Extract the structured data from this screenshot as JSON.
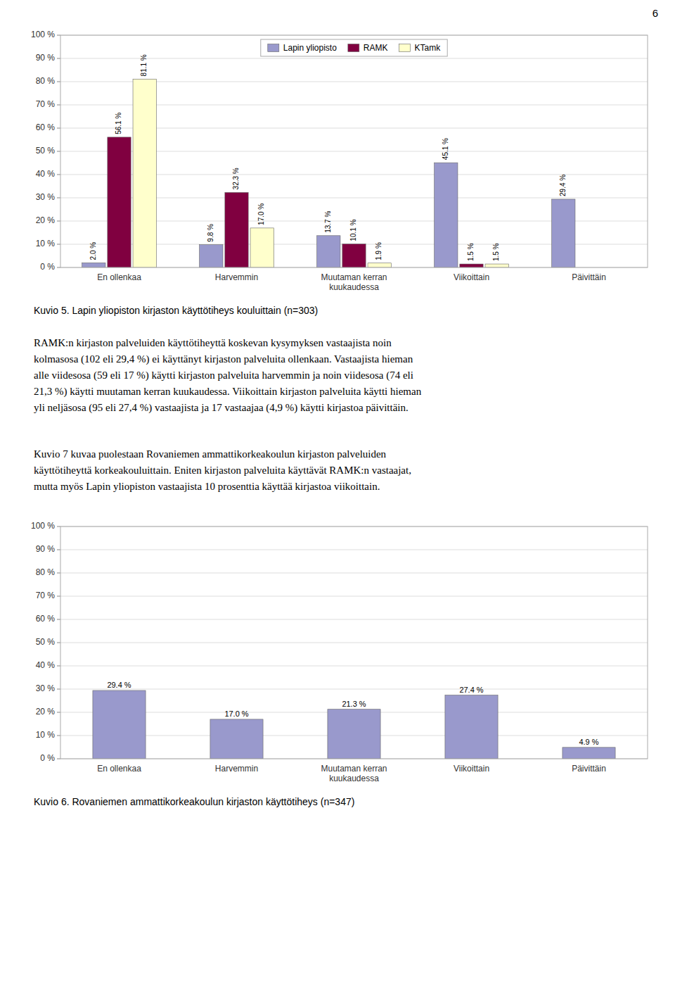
{
  "page_number": "6",
  "body_text": [
    "RAMK:n kirjaston palveluiden käyttötiheyttä koskevan kysymyksen vastaajista noin\nkolmasosa (102 eli 29,4 %) ei käyttänyt kirjaston palveluita ollenkaan. Vastaajista hieman\nalle viidesosa (59 eli 17 %) käytti kirjaston palveluita harvemmin ja noin viidesosa (74 eli\n21,3 %) käytti muutaman kerran kuukaudessa. Viikoittain kirjaston palveluita käytti hieman\nyli neljäsosa (95 eli 27,4 %) vastaajista ja 17 vastaajaa (4,9 %) käytti kirjastoa päivittäin.",
    "Kuvio 7 kuvaa puolestaan Rovaniemen ammattikorkeakoulun kirjaston palveluiden\nkäyttötiheyttä korkeakouluittain. Eniten kirjaston palveluita käyttävät RAMK:n vastaajat,\nmutta myös Lapin yliopiston vastaajista 10 prosenttia käyttää kirjastoa viikoittain."
  ],
  "chart_data": [
    {
      "type": "bar",
      "title": "Kuvio 5. Lapin yliopiston kirjaston käyttötiheys kouluittain (n=303)",
      "categories": [
        "En ollenkaa",
        "Harvemmin",
        "Muutaman kerran\nkuukaudessa",
        "Viikoittain",
        "Päivittäin"
      ],
      "series": [
        {
          "name": "Lapin yliopisto",
          "color": "#9999CC",
          "values": [
            2.0,
            9.8,
            13.7,
            45.1,
            29.4
          ],
          "value_labels": [
            "2.0 %",
            "9.8 %",
            "13.7 %",
            "45.1 %",
            "29.4 %"
          ]
        },
        {
          "name": "RAMK",
          "color": "#800040",
          "values": [
            56.1,
            32.3,
            10.1,
            1.5,
            0.0
          ],
          "value_labels": [
            "56.1 %",
            "32.3 %",
            "10.1 %",
            "1.5 %",
            null
          ]
        },
        {
          "name": "KTamk",
          "color": "#FFFFCC",
          "values": [
            81.1,
            17.0,
            1.9,
            1.5,
            0.0
          ],
          "value_labels": [
            "81.1 %",
            "17.0 %",
            "1.9 %",
            "1.5 %",
            null
          ]
        }
      ],
      "ylim": [
        0,
        100
      ],
      "yticks": [
        {
          "value": 0,
          "label": "0 %"
        },
        {
          "value": 10,
          "label": "10 %"
        },
        {
          "value": 20,
          "label": "20 %"
        },
        {
          "value": 30,
          "label": "30 %"
        },
        {
          "value": 40,
          "label": "40 %"
        },
        {
          "value": 50,
          "label": "50 %"
        },
        {
          "value": 60,
          "label": "60 %"
        },
        {
          "value": 70,
          "label": "70 %"
        },
        {
          "value": 80,
          "label": "80 %"
        },
        {
          "value": 90,
          "label": "90 %"
        },
        {
          "value": 100,
          "label": "100 %"
        }
      ],
      "grid": true,
      "legend": "top",
      "data_labels": true
    },
    {
      "type": "bar",
      "title": "Kuvio 6. Rovaniemen ammattikorkeakoulun kirjaston käyttötiheys (n=347)",
      "categories": [
        "En ollenkaa",
        "Harvemmin",
        "Muutaman kerran\nkuukaudessa",
        "Viikoittain",
        "Päivittäin"
      ],
      "values": [
        29.4,
        17.0,
        21.3,
        27.4,
        4.9
      ],
      "value_labels": [
        "29.4 %",
        "17.0 %",
        "21.3 %",
        "27.4 %",
        "4.9 %"
      ],
      "color": "#9999CC",
      "ylim": [
        0,
        100
      ],
      "yticks": [
        {
          "value": 0,
          "label": "0 %"
        },
        {
          "value": 10,
          "label": "10 %"
        },
        {
          "value": 20,
          "label": "20 %"
        },
        {
          "value": 30,
          "label": "30 %"
        },
        {
          "value": 40,
          "label": "40 %"
        },
        {
          "value": 50,
          "label": "50 %"
        },
        {
          "value": 60,
          "label": "60 %"
        },
        {
          "value": 70,
          "label": "70 %"
        },
        {
          "value": 80,
          "label": "80 %"
        },
        {
          "value": 90,
          "label": "90 %"
        },
        {
          "value": 100,
          "label": "100 %"
        }
      ],
      "grid": true,
      "data_labels": true
    }
  ]
}
